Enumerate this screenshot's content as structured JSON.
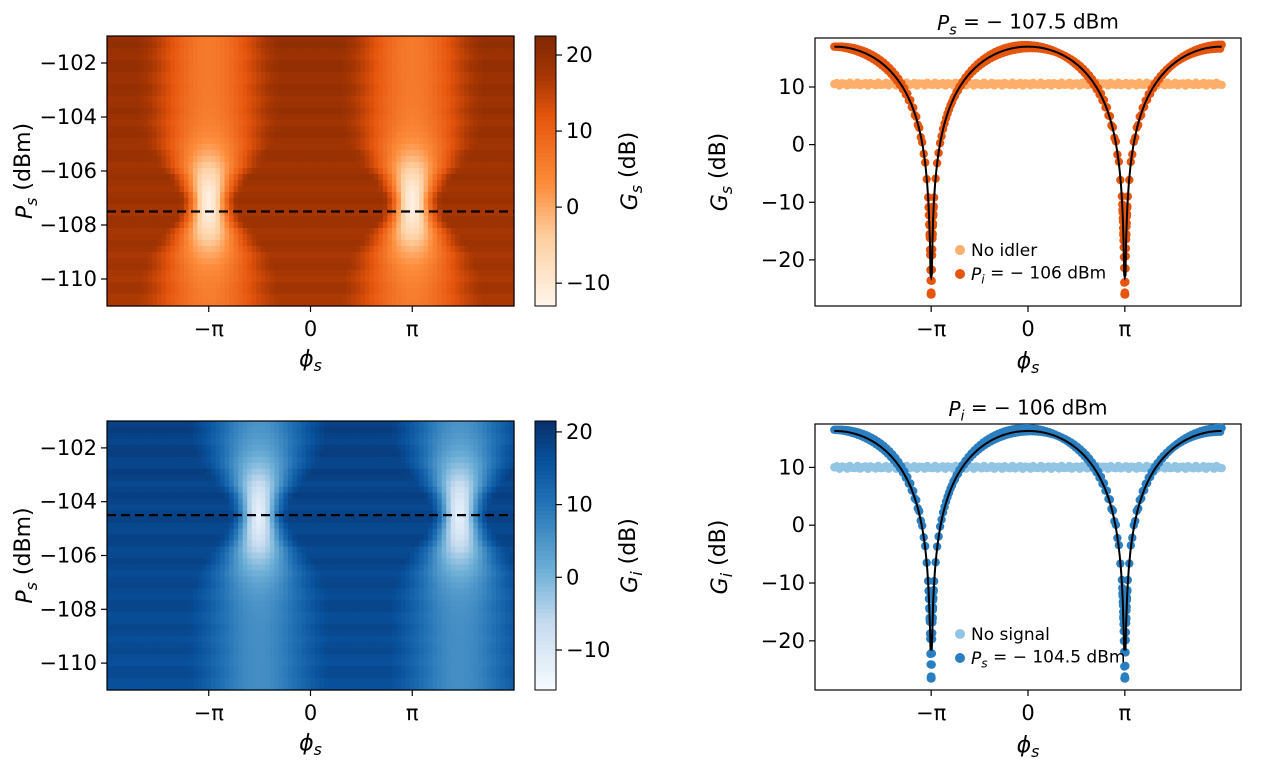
{
  "figure": {
    "colors": {
      "orange_light": "#fdae6b",
      "orange_dark": "#e6550d",
      "blue_light": "#92c4e4",
      "blue_dark": "#2b7fc0",
      "fit_line": "#000000",
      "cut_line": "#000000"
    }
  },
  "chart_data": [
    {
      "id": "heat-signal",
      "type": "heatmap",
      "colormap": "Oranges",
      "xlabel": "φs",
      "ylabel": "Ps (dBm)",
      "ylabel_main": "P",
      "ylabel_sub": "s",
      "ylabel_unit": " (dBm)",
      "xlabel_main": "ϕ",
      "xlabel_sub": "s",
      "xlim": [
        -6.283,
        6.283
      ],
      "ylim": [
        -111,
        -101
      ],
      "x_ticks": [
        -3.1416,
        0,
        3.1416
      ],
      "x_tick_labels": [
        "−π",
        "0",
        "π"
      ],
      "y_ticks": [
        -102,
        -104,
        -106,
        -108,
        -110
      ],
      "y_tick_labels": [
        "−102",
        "−104",
        "−106",
        "−108",
        "−110"
      ],
      "cut_power": -107.5,
      "peak_phases": [
        -3.1416,
        3.1416
      ],
      "peak_power_center": -107.2,
      "colorbar": {
        "label": "Gs (dB)",
        "label_main": "G",
        "label_sub": "s",
        "label_unit": " (dB)",
        "range": [
          -13,
          22.5
        ],
        "ticks": [
          20,
          10,
          0,
          -10
        ],
        "tick_labels": [
          "20",
          "10",
          "0",
          "−10"
        ]
      }
    },
    {
      "id": "line-signal",
      "type": "scatter",
      "title": "Ps = −107.5 dBm",
      "title_main": "P",
      "title_sub": "s",
      "title_rest": " = − 107.5 dBm",
      "xlabel": "φs",
      "xlabel_main": "ϕ",
      "xlabel_sub": "s",
      "ylabel": "Gs (dB)",
      "ylabel_main": "G",
      "ylabel_sub": "s",
      "ylabel_unit": " (dB)",
      "xlim": [
        -6.91,
        6.91
      ],
      "ylim": [
        -28,
        18.5
      ],
      "x_ticks": [
        -3.1416,
        0,
        3.1416
      ],
      "x_tick_labels": [
        "−π",
        "0",
        "π"
      ],
      "y_ticks": [
        10,
        0,
        -10,
        -20
      ],
      "y_tick_labels": [
        "10",
        "0",
        "−10",
        "−20"
      ],
      "series": [
        {
          "name": "No idler",
          "kind": "flat",
          "value": 10.5,
          "x_range": [
            -6.283,
            6.283
          ]
        },
        {
          "name": "Pi = −106 dBm",
          "kind": "dip",
          "max": 17.0,
          "min": -26.0,
          "x_range": [
            -6.283,
            6.283
          ],
          "dip_phases": [
            -3.1416,
            3.1416
          ]
        }
      ],
      "fit": {
        "name": "fit",
        "max": 17.0,
        "min": -23.0
      },
      "legend": [
        {
          "text": "No idler",
          "color": "#fdae6b"
        },
        {
          "text_main": "P",
          "text_sub": "i",
          "text_rest": " = − 106 dBm",
          "color": "#e6550d"
        }
      ],
      "legend_position": "lower-center"
    },
    {
      "id": "heat-idler",
      "type": "heatmap",
      "colormap": "Blues",
      "xlabel": "φs",
      "ylabel": "Ps (dBm)",
      "ylabel_main": "P",
      "ylabel_sub": "s",
      "ylabel_unit": " (dBm)",
      "xlabel_main": "ϕ",
      "xlabel_sub": "s",
      "xlim": [
        -6.283,
        6.283
      ],
      "ylim": [
        -111,
        -101
      ],
      "x_ticks": [
        -3.1416,
        0,
        3.1416
      ],
      "x_tick_labels": [
        "−π",
        "0",
        "π"
      ],
      "y_ticks": [
        -102,
        -104,
        -106,
        -108,
        -110
      ],
      "y_tick_labels": [
        "−102",
        "−104",
        "−106",
        "−108",
        "−110"
      ],
      "cut_power": -104.5,
      "peak_phases": [
        -1.6,
        4.6
      ],
      "peak_power_center": -104.5,
      "colorbar": {
        "label": "Gi (dB)",
        "label_main": "G",
        "label_sub": "i",
        "label_unit": " (dB)",
        "range": [
          -15.5,
          21.5
        ],
        "ticks": [
          20,
          10,
          0,
          -10
        ],
        "tick_labels": [
          "20",
          "10",
          "0",
          "−10"
        ]
      }
    },
    {
      "id": "line-idler",
      "type": "scatter",
      "title": "Pi = −106 dBm",
      "title_main": "P",
      "title_sub": "i",
      "title_rest": " = − 106 dBm",
      "xlabel": "φs",
      "xlabel_main": "ϕ",
      "xlabel_sub": "s",
      "ylabel": "Gi (dB)",
      "ylabel_main": "G",
      "ylabel_sub": "i",
      "ylabel_unit": " (dB)",
      "xlim": [
        -6.91,
        6.91
      ],
      "ylim": [
        -28.5,
        17.5
      ],
      "x_ticks": [
        -3.1416,
        0,
        3.1416
      ],
      "x_tick_labels": [
        "−π",
        "0",
        "π"
      ],
      "y_ticks": [
        10,
        0,
        -10,
        -20
      ],
      "y_tick_labels": [
        "10",
        "0",
        "−10",
        "−20"
      ],
      "series": [
        {
          "name": "No signal",
          "kind": "flat",
          "value": 10.0,
          "x_range": [
            -6.283,
            6.283
          ]
        },
        {
          "name": "Ps = −104.5 dBm",
          "kind": "dip",
          "max": 16.5,
          "min": -26.5,
          "x_range": [
            -6.283,
            6.283
          ],
          "dip_phases": [
            -3.1416,
            3.1416
          ]
        }
      ],
      "fit": {
        "name": "fit",
        "max": 16.3,
        "min": -21.5
      },
      "legend": [
        {
          "text": "No signal",
          "color": "#92c4e4"
        },
        {
          "text_main": "P",
          "text_sub": "s",
          "text_rest": " = − 104.5 dBm",
          "color": "#2b7fc0"
        }
      ],
      "legend_position": "lower-center"
    }
  ]
}
